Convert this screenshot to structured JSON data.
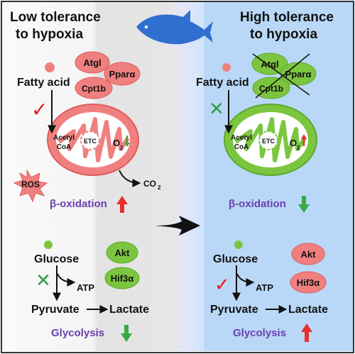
{
  "panels": {
    "left_title": [
      "Low tolerance",
      "to hypoxia"
    ],
    "right_title": [
      "High tolerance",
      "to hypoxia"
    ]
  },
  "left": {
    "lipid_proteins": [
      "Atgl",
      "Pparα",
      "Cpt1b"
    ],
    "fatty_acid": "Fatty acid",
    "uptake_mark": "✓",
    "acetyl": [
      "Acetyl",
      "CoA"
    ],
    "etc": "ETC",
    "o2": "O",
    "o2_sub": "2",
    "o2_change": "down",
    "ros": "ROS",
    "co2": "CO",
    "co2_sub": "2",
    "beta_label": "β-oxidation",
    "beta_change": "up",
    "glucose": "Glucose",
    "glucose_mark": "✕",
    "atp": "ATP",
    "pyruvate": "Pyruvate",
    "lactate": "Lactate",
    "glyco_proteins": [
      "Akt",
      "Hif3α"
    ],
    "glyco_label": "Glycolysis",
    "glyco_change": "down"
  },
  "right": {
    "lipid_proteins": [
      "Atgl",
      "Pparα",
      "Cpt1b"
    ],
    "fatty_acid": "Fatty acid",
    "uptake_mark": "✕",
    "acetyl": [
      "Acetyl",
      "CoA"
    ],
    "etc": "ETC",
    "o2": "O",
    "o2_sub": "2",
    "o2_change": "up",
    "beta_label": "β-oxidation",
    "beta_change": "down",
    "glucose": "Glucose",
    "glucose_mark": "✓",
    "atp": "ATP",
    "pyruvate": "Pyruvate",
    "lactate": "Lactate",
    "glyco_proteins": [
      "Akt",
      "Hif3α"
    ],
    "glyco_label": "Glycolysis",
    "glyco_change": "up"
  },
  "colors": {
    "red_fill": "#f08080",
    "red_stroke": "#e15a5a",
    "green_fill": "#7cc63f",
    "green_stroke": "#5aa82a",
    "check_red": "#e02020",
    "cross_green": "#2f9e4a",
    "arrow_up_red": "#e8302a",
    "arrow_down_green": "#3aa845",
    "purple": "#6a3fb0",
    "fish_blue": "#2f6fd0",
    "right_panel": "#b9d8f7",
    "left_panel_grey": "#e6e6e6"
  }
}
